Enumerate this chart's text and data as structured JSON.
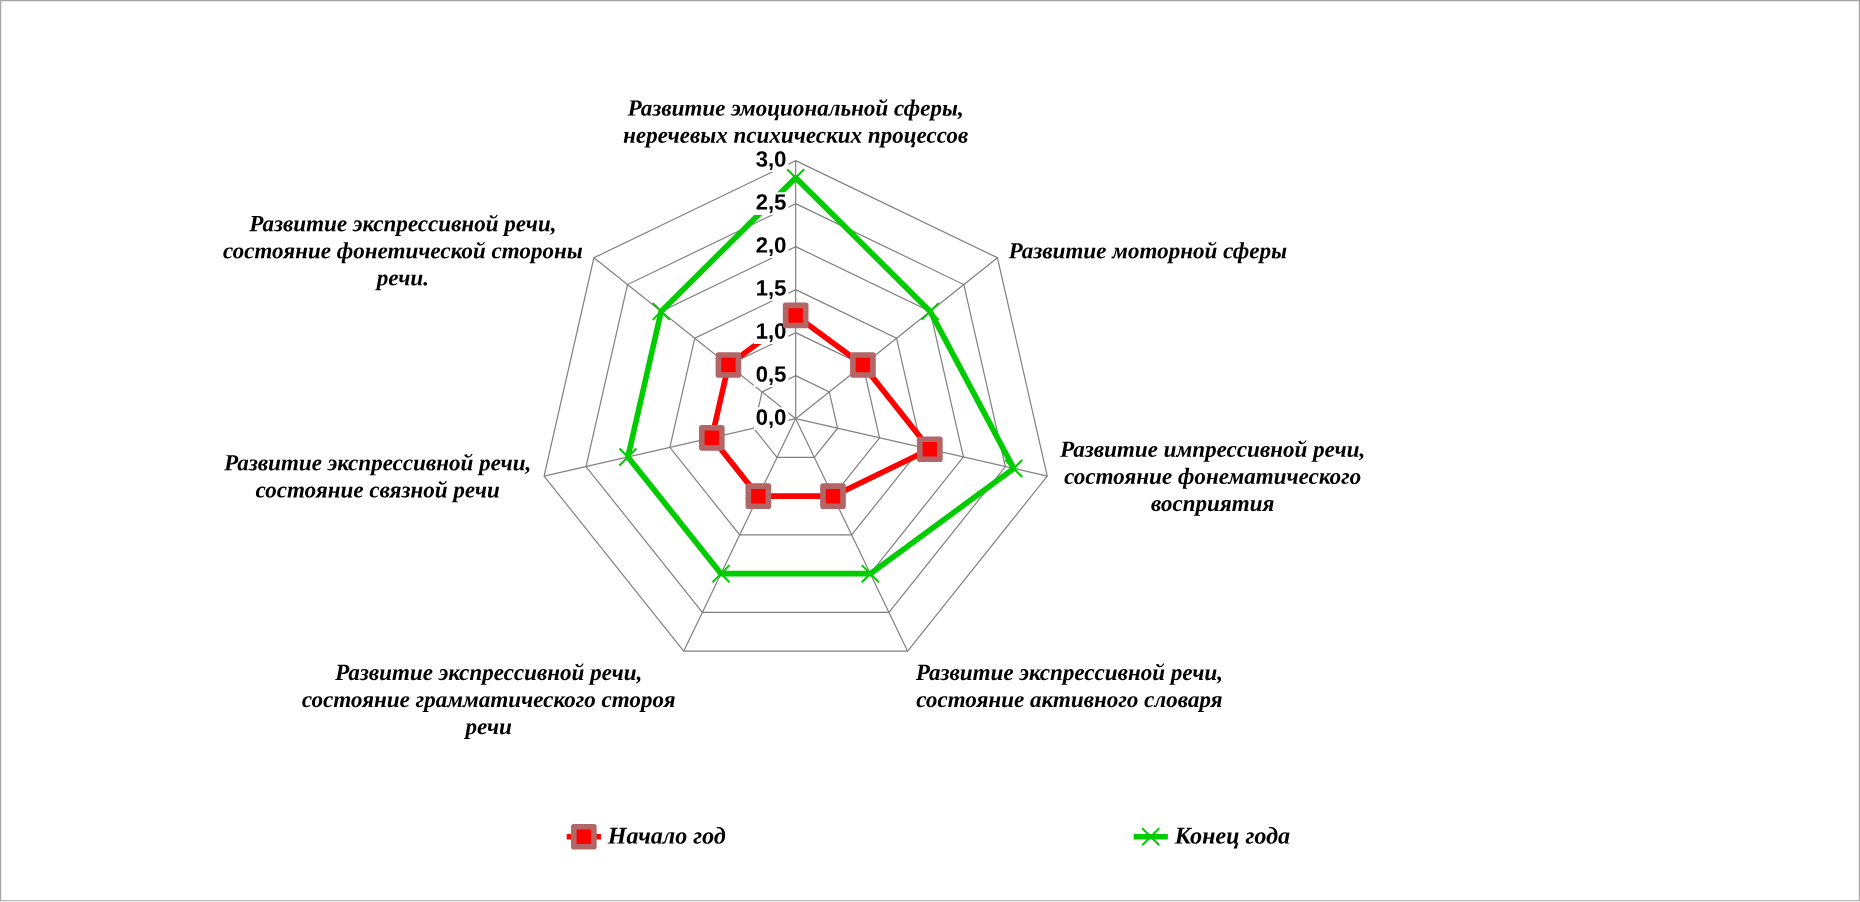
{
  "chart_data": {
    "type": "radar",
    "categories": [
      "Развитие эмоциональной сферы, неречевых психических процессов",
      "Развитие моторной сферы",
      "Развитие импрессивной речи, состояние фонематического восприятия",
      "Развитие экспрессивной речи, состояние активного словаря",
      "Развитие экспрессивной речи, состояние грамматического стороя речи",
      "Развитие экспрессивной речи, состояние связной речи",
      "Развитие экспрессивной речи, состояние фонетической стороны речи."
    ],
    "series": [
      {
        "name": "Начало год",
        "color": "#ff0000",
        "marker": "square",
        "values": [
          1.2,
          1.0,
          1.6,
          1.0,
          1.0,
          1.0,
          1.0
        ]
      },
      {
        "name": "Конец года",
        "color": "#00cc00",
        "marker": "cross",
        "values": [
          2.8,
          2.0,
          2.6,
          2.0,
          2.0,
          2.0,
          2.0
        ]
      }
    ],
    "ylim": [
      0,
      3
    ],
    "yticks": [
      {
        "value": 0,
        "label": "0,0"
      },
      {
        "value": 0.5,
        "label": "0,5"
      },
      {
        "value": 1,
        "label": "1,0"
      },
      {
        "value": 1.5,
        "label": "1,5"
      },
      {
        "value": 2,
        "label": "2,0"
      },
      {
        "value": 2.5,
        "label": "2,5"
      },
      {
        "value": 3,
        "label": "3,0"
      }
    ],
    "grid": true,
    "legend": "bottom"
  }
}
